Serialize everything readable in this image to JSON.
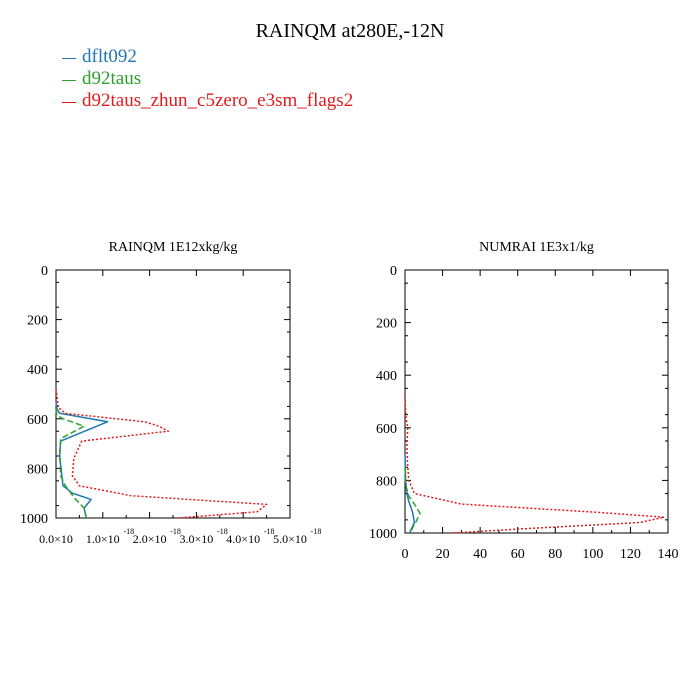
{
  "title": "RAINQM at280E,-12N",
  "legend": [
    {
      "name": "dflt092",
      "color": "#1f77b4"
    },
    {
      "name": "d92taus",
      "color": "#2ca02c"
    },
    {
      "name": "d92taus_zhun_c5zero_e3sm_flags2",
      "color": "#e31a1c"
    }
  ],
  "chart_data": [
    {
      "type": "line",
      "title": "RAINQM  1E12xkg/kg",
      "xlabel": "",
      "ylabel": "",
      "xlim": [
        0,
        5e-18
      ],
      "ylim": [
        1000,
        0
      ],
      "y_inverted": true,
      "xticks": [
        "0.0×10",
        "1.0×10",
        "2.0×10",
        "3.0×10",
        "4.0×10",
        "5.0×10"
      ],
      "xtick_values": [
        0,
        1e-18,
        2e-18,
        3e-18,
        4e-18,
        5e-18
      ],
      "xtick_exponent": "-18",
      "yticks": [
        "0",
        "200",
        "400",
        "600",
        "800",
        "1000"
      ],
      "ytick_values": [
        0,
        200,
        400,
        600,
        800,
        1000
      ],
      "series": [
        {
          "name": "dflt092",
          "color": "#1f77b4",
          "dash": "solid",
          "x": [
            0,
            2e-20,
            8e-20,
            1.1e-18,
            1e-19,
            8e-20,
            1.2e-19,
            1.5e-19,
            3.5e-19,
            7.5e-19,
            6e-19,
            6.5e-19
          ],
          "y": [
            530,
            560,
            578,
            612,
            690,
            750,
            820,
            870,
            900,
            925,
            960,
            1000
          ]
        },
        {
          "name": "d92taus",
          "color": "#2ca02c",
          "dash": "dashed",
          "x": [
            0,
            2e-20,
            1.5e-19,
            6e-19,
            1e-19,
            8e-20,
            1e-19,
            2e-19,
            4e-19,
            6e-19,
            6.5e-19
          ],
          "y": [
            560,
            585,
            600,
            630,
            680,
            740,
            830,
            870,
            920,
            960,
            1000
          ]
        },
        {
          "name": "d92taus_zhun_c5zero_e3sm_flags2",
          "color": "#e31a1c",
          "dash": "dotted",
          "x": [
            0,
            5e-20,
            2e-19,
            1.9e-18,
            2.2e-18,
            2.4e-18,
            5.5e-19,
            3.8e-19,
            3.5e-19,
            5e-19,
            1.6e-18,
            4.5e-18,
            4.3e-18,
            2.6e-18
          ],
          "y": [
            480,
            555,
            578,
            612,
            630,
            650,
            690,
            760,
            830,
            870,
            910,
            945,
            975,
            1000
          ]
        }
      ]
    },
    {
      "type": "line",
      "title": "NUMRAI  1E3x1/kg",
      "xlabel": "",
      "ylabel": "",
      "xlim": [
        0,
        140
      ],
      "ylim": [
        1000,
        0
      ],
      "y_inverted": true,
      "xticks": [
        "0",
        "20",
        "40",
        "60",
        "80",
        "100",
        "120",
        "140"
      ],
      "xtick_values": [
        0,
        20,
        40,
        60,
        80,
        100,
        120,
        140
      ],
      "yticks": [
        "0",
        "200",
        "400",
        "600",
        "800",
        "1000"
      ],
      "ytick_values": [
        0,
        200,
        400,
        600,
        800,
        1000
      ],
      "series": [
        {
          "name": "dflt092",
          "color": "#1f77b4",
          "dash": "solid",
          "x": [
            0,
            0.3,
            1,
            2,
            4,
            5,
            3,
            2.5
          ],
          "y": [
            700,
            800,
            850,
            880,
            920,
            960,
            990,
            1000
          ]
        },
        {
          "name": "d92taus",
          "color": "#2ca02c",
          "dash": "dashed",
          "x": [
            0,
            0.5,
            2,
            5,
            8,
            6,
            4,
            3
          ],
          "y": [
            750,
            820,
            860,
            890,
            925,
            955,
            980,
            1000
          ]
        },
        {
          "name": "d92taus_zhun_c5zero_e3sm_flags2",
          "color": "#e31a1c",
          "dash": "dotted",
          "x": [
            0,
            0.5,
            1.5,
            1,
            1.2,
            2,
            5,
            30,
            100,
            138,
            125,
            60,
            25
          ],
          "y": [
            480,
            560,
            600,
            660,
            720,
            800,
            850,
            890,
            920,
            940,
            960,
            985,
            1000
          ]
        }
      ]
    }
  ]
}
